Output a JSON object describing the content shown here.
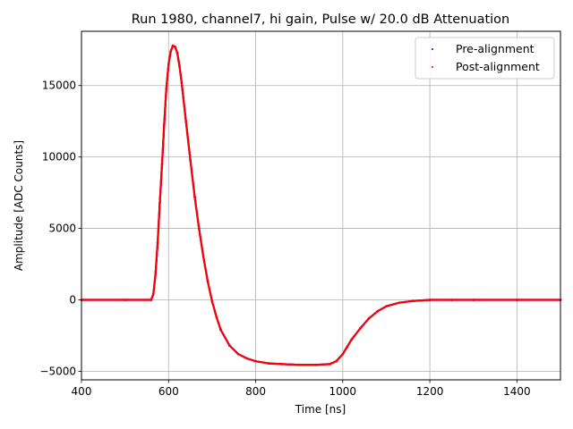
{
  "chart_data": {
    "type": "scatter",
    "title": "Run 1980, channel7, hi gain, Pulse w/ 20.0 dB Attenuation",
    "xlabel": "Time [ns]",
    "ylabel": "Amplitude [ADC Counts]",
    "xlim": [
      400,
      1500
    ],
    "ylim": [
      -5600,
      18800
    ],
    "xticks": [
      400,
      600,
      800,
      1000,
      1200,
      1400
    ],
    "yticks": [
      -5000,
      0,
      5000,
      10000,
      15000
    ],
    "ytick_labels": [
      "−5000",
      "0",
      "5000",
      "10000",
      "15000"
    ],
    "grid": true,
    "legend_position": "top-right",
    "series": [
      {
        "name": "Pre-alignment",
        "color": "#0000ff",
        "x": [
          400,
          500,
          560,
          565,
          570,
          575,
          580,
          585,
          590,
          595,
          600,
          605,
          610,
          615,
          620,
          625,
          630,
          640,
          650,
          660,
          670,
          680,
          690,
          700,
          710,
          720,
          740,
          760,
          780,
          800,
          830,
          860,
          900,
          940,
          970,
          985,
          1000,
          1010,
          1020,
          1040,
          1060,
          1080,
          1100,
          1130,
          1160,
          1200,
          1250,
          1300,
          1400,
          1500
        ],
        "y": [
          0,
          0,
          0,
          400,
          1800,
          4000,
          6800,
          9500,
          12300,
          14800,
          16500,
          17400,
          17800,
          17700,
          17300,
          16400,
          15200,
          12500,
          9800,
          7200,
          5000,
          3000,
          1300,
          -100,
          -1200,
          -2100,
          -3200,
          -3800,
          -4100,
          -4300,
          -4450,
          -4500,
          -4550,
          -4550,
          -4500,
          -4300,
          -3800,
          -3300,
          -2800,
          -2000,
          -1300,
          -800,
          -450,
          -200,
          -80,
          0,
          0,
          0,
          0,
          0
        ]
      },
      {
        "name": "Post-alignment",
        "color": "#ff0000",
        "x": [
          400,
          500,
          560,
          565,
          570,
          575,
          580,
          585,
          590,
          595,
          600,
          605,
          610,
          615,
          620,
          625,
          630,
          640,
          650,
          660,
          670,
          680,
          690,
          700,
          710,
          720,
          740,
          760,
          780,
          800,
          830,
          860,
          900,
          940,
          970,
          985,
          1000,
          1010,
          1020,
          1040,
          1060,
          1080,
          1100,
          1130,
          1160,
          1200,
          1250,
          1300,
          1400,
          1500
        ],
        "y": [
          0,
          0,
          0,
          400,
          1800,
          4000,
          6800,
          9500,
          12300,
          14800,
          16500,
          17400,
          17800,
          17700,
          17300,
          16400,
          15200,
          12500,
          9800,
          7200,
          5000,
          3000,
          1300,
          -100,
          -1200,
          -2100,
          -3200,
          -3800,
          -4100,
          -4300,
          -4450,
          -4500,
          -4550,
          -4550,
          -4500,
          -4300,
          -3800,
          -3300,
          -2800,
          -2000,
          -1300,
          -800,
          -450,
          -200,
          -80,
          0,
          0,
          0,
          0,
          0
        ]
      }
    ]
  }
}
